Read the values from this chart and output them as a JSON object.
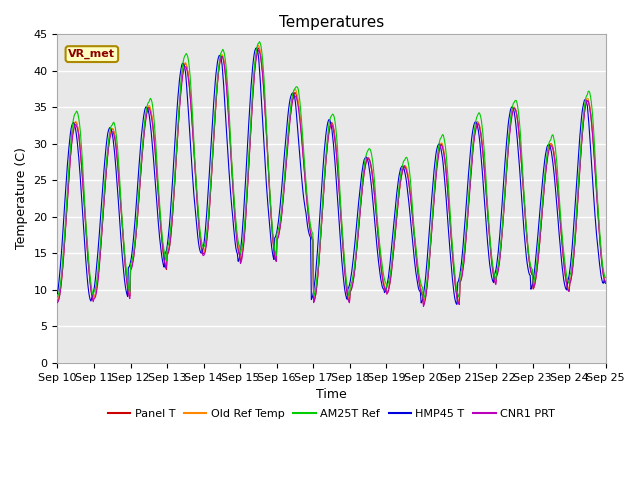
{
  "title": "Temperatures",
  "xlabel": "Time",
  "ylabel": "Temperature (C)",
  "ylim": [
    0,
    45
  ],
  "yticks": [
    0,
    5,
    10,
    15,
    20,
    25,
    30,
    35,
    40,
    45
  ],
  "start_day": 10,
  "end_day": 25,
  "annotation": "VR_met",
  "series_colors": {
    "Panel T": "#cc0000",
    "Old Ref Temp": "#ff8800",
    "AM25T Ref": "#00cc00",
    "HMP45 T": "#0000dd",
    "CNR1 PRT": "#bb00bb"
  },
  "legend_order": [
    "Panel T",
    "Old Ref Temp",
    "AM25T Ref",
    "HMP45 T",
    "CNR1 PRT"
  ],
  "plot_bg_color": "#e8e8e8",
  "grid_color": "#ffffff",
  "title_fontsize": 11,
  "label_fontsize": 9,
  "tick_fontsize": 8
}
